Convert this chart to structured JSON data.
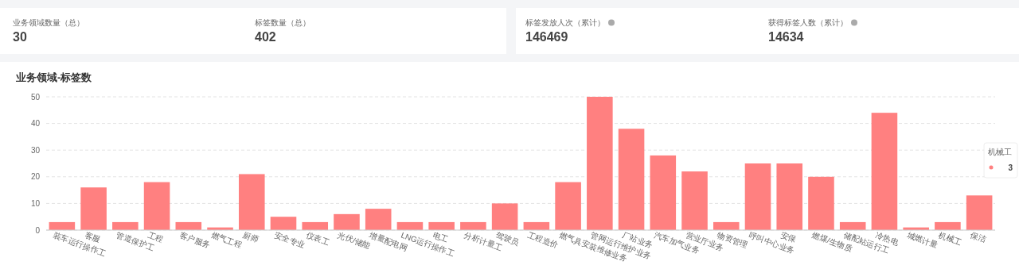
{
  "chart_data": [
    {
      "type": "other",
      "annotations": [
        "业务领域数量（总）",
        "30",
        "标签数量（总）",
        "402",
        "标签发放人次（累计）",
        "146469",
        "获得标签人数（累计）",
        "14634"
      ]
    },
    {
      "type": "bar",
      "title": "业务领域-标签数",
      "color": "#ff8080",
      "categories": [
        "装车运行操作工",
        "客服",
        "管道保护工",
        "工程",
        "客户服务",
        "燃气工程",
        "厨师",
        "安全专业",
        "仪表工",
        "光伏/储能",
        "增量配电网",
        "LNG运行操作工",
        "电工",
        "分析计量工",
        "驾驶员",
        "工程造价",
        "燃气具安装维修业务",
        "管网运行维护业务",
        "厂站业务",
        "汽车加气业务",
        "营业厅业务",
        "物资管理",
        "呼叫中心业务",
        "安保",
        "燃煤/生物质",
        "储配站运行工",
        "冷热电",
        "城燃计量",
        "机械工",
        "保洁"
      ],
      "values": [
        3,
        16,
        3,
        18,
        3,
        1,
        21,
        5,
        3,
        6,
        8,
        3,
        3,
        3,
        10,
        3,
        18,
        50,
        38,
        28,
        22,
        3,
        25,
        25,
        20,
        3,
        44,
        1,
        3,
        13
      ],
      "ylim": [
        0,
        50
      ],
      "yticks": [
        0,
        10,
        20,
        30,
        40,
        50
      ],
      "grid": "y",
      "annotations": [
        "机械工",
        "3"
      ]
    }
  ]
}
